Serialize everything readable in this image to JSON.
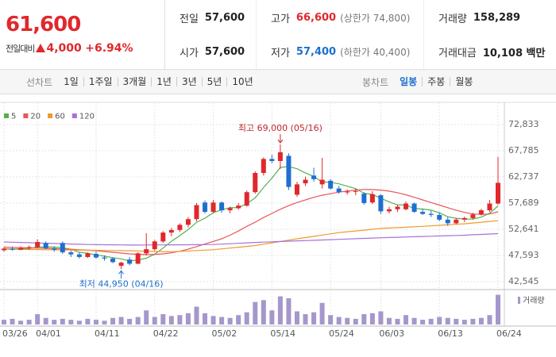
{
  "quote": {
    "price": "61,600",
    "change_caption": "전일대비",
    "change": "4,000",
    "change_pct": "+6.94%"
  },
  "stats": [
    {
      "label": "전일",
      "value": "57,600"
    },
    {
      "label": "고가",
      "value": "66,600",
      "note": "(상한가 74,800)",
      "color": "#e0282c"
    },
    {
      "label": "거래량",
      "value": "158,289"
    },
    {
      "label": "시가",
      "value": "57,600"
    },
    {
      "label": "저가",
      "value": "57,400",
      "note": "(하한가 40,400)",
      "color": "#1e6fd0"
    },
    {
      "label": "거래대금",
      "value": "10,108 백만"
    }
  ],
  "toolbar": {
    "line_caption": "선차트",
    "line_periods": [
      "1일",
      "1주일",
      "3개월",
      "1년",
      "3년",
      "5년",
      "10년"
    ],
    "candle_caption": "봉차트",
    "candle_periods": [
      "일봉",
      "주봉",
      "월봉"
    ]
  },
  "chart_data": {
    "type": "candlestick",
    "categories": [
      "03/26",
      null,
      null,
      null,
      "04/01",
      null,
      null,
      null,
      null,
      null,
      null,
      "04/11",
      null,
      null,
      null,
      null,
      null,
      null,
      "04/22",
      null,
      null,
      null,
      null,
      null,
      null,
      "05/02",
      null,
      null,
      null,
      null,
      null,
      null,
      "05/14",
      null,
      null,
      null,
      null,
      null,
      null,
      "05/24",
      null,
      null,
      null,
      null,
      null,
      "06/03",
      null,
      null,
      null,
      null,
      null,
      null,
      "06/13",
      null,
      null,
      null,
      null,
      null,
      null,
      "06/24"
    ],
    "open": [
      48600,
      48900,
      48700,
      49000,
      49200,
      50000,
      49000,
      50000,
      48200,
      47800,
      47300,
      47900,
      47200,
      47000,
      45600,
      46800,
      46000,
      48000,
      48800,
      50300,
      52000,
      52500,
      53500,
      54600,
      57800,
      56000,
      57800,
      56300,
      56700,
      57200,
      59800,
      63500,
      66200,
      65800,
      66800,
      59300,
      61500,
      63000,
      61300,
      62000,
      60500,
      59800,
      59900,
      59500,
      57800,
      59200,
      56100,
      56500,
      56500,
      57600,
      56000,
      55600,
      55400,
      54500,
      53800,
      54500,
      54800,
      55500,
      56300,
      57600
    ],
    "high": [
      49200,
      49300,
      49300,
      49500,
      50700,
      50300,
      49300,
      50300,
      48500,
      48200,
      48200,
      48300,
      47600,
      47300,
      46400,
      47300,
      48200,
      51900,
      50600,
      52300,
      52900,
      53800,
      55000,
      57700,
      58200,
      58300,
      58000,
      57000,
      57700,
      60100,
      63800,
      66500,
      67000,
      69000,
      67300,
      61800,
      62800,
      64500,
      66400,
      62300,
      61000,
      60300,
      60500,
      59800,
      60000,
      59400,
      57000,
      57400,
      58000,
      57800,
      56600,
      56200,
      55900,
      55000,
      54800,
      55100,
      55800,
      56600,
      58300,
      66600
    ],
    "low": [
      48300,
      48500,
      48600,
      48700,
      49000,
      48800,
      48300,
      47900,
      47300,
      47000,
      47100,
      47000,
      46600,
      46100,
      44950,
      45700,
      45900,
      47600,
      48500,
      50000,
      51300,
      52100,
      53000,
      54200,
      55700,
      55800,
      55800,
      55700,
      56400,
      57000,
      59500,
      63000,
      65400,
      64300,
      60200,
      58900,
      61000,
      61800,
      60500,
      60300,
      59500,
      59300,
      59200,
      57400,
      57500,
      55600,
      55700,
      56000,
      56300,
      55800,
      55400,
      55000,
      54200,
      53300,
      53600,
      54000,
      54500,
      55300,
      56000,
      57400
    ],
    "close": [
      48900,
      48700,
      49000,
      49200,
      50200,
      49000,
      48700,
      48200,
      47800,
      47300,
      48000,
      47200,
      47000,
      46300,
      46200,
      46000,
      48000,
      48800,
      50300,
      52000,
      52500,
      53500,
      54600,
      57300,
      56000,
      57800,
      56300,
      56700,
      57200,
      59800,
      63500,
      66200,
      65800,
      67500,
      60800,
      61300,
      62200,
      62300,
      62200,
      60500,
      59800,
      59900,
      60000,
      57700,
      59400,
      56100,
      56500,
      57000,
      57600,
      56000,
      55600,
      55400,
      54500,
      53800,
      54500,
      54800,
      55500,
      56300,
      57600,
      61600
    ],
    "up_color": "#e0282c",
    "down_color": "#1e6fd0",
    "ma": [
      {
        "name": "5",
        "color": "#55b04f",
        "values": [
          48900,
          48850,
          48900,
          48950,
          49200,
          49220,
          49220,
          49060,
          48780,
          48200,
          48000,
          47700,
          47460,
          47160,
          46940,
          46540,
          46700,
          47060,
          47860,
          49020,
          50320,
          51420,
          52580,
          53980,
          54780,
          55840,
          56400,
          56820,
          56800,
          57560,
          58700,
          60680,
          62500,
          64560,
          64760,
          64320,
          63520,
          62820,
          61760,
          61700,
          61400,
          60940,
          60480,
          59580,
          59360,
          58620,
          57940,
          57340,
          57320,
          56640,
          56540,
          56320,
          55820,
          55060,
          54760,
          54600,
          54620,
          54980,
          55740,
          57160
        ]
      },
      {
        "name": "20",
        "color": "#e8565a",
        "values": [
          49200,
          49150,
          49100,
          49050,
          49000,
          48950,
          48900,
          48850,
          48800,
          48700,
          48600,
          48500,
          48350,
          48200,
          48050,
          47900,
          47800,
          47750,
          47800,
          47900,
          48100,
          48400,
          48800,
          49300,
          49800,
          50300,
          50800,
          51500,
          52300,
          53200,
          54000,
          54900,
          55700,
          56500,
          57200,
          57800,
          58300,
          58800,
          59200,
          59500,
          59800,
          60000,
          60200,
          60300,
          60300,
          60200,
          60000,
          59700,
          59300,
          58800,
          58300,
          57800,
          57300,
          56800,
          56300,
          55900,
          55600,
          55500,
          55600,
          56000
        ]
      },
      {
        "name": "60",
        "color": "#f09a2a",
        "values": [
          48800,
          48780,
          48760,
          48740,
          48720,
          48700,
          48680,
          48660,
          48640,
          48620,
          48600,
          48580,
          48560,
          48540,
          48520,
          48500,
          48460,
          48420,
          48380,
          48340,
          48300,
          48380,
          48460,
          48540,
          48620,
          48700,
          48860,
          49020,
          49180,
          49340,
          49500,
          49760,
          50020,
          50280,
          50540,
          50800,
          51040,
          51280,
          51520,
          51760,
          52000,
          52160,
          52320,
          52480,
          52640,
          52800,
          52880,
          52960,
          53040,
          53120,
          53200,
          53300,
          53400,
          53500,
          53600,
          53700,
          53850,
          54000,
          54150,
          54300
        ]
      },
      {
        "name": "120",
        "color": "#a772d6",
        "values": [
          50200,
          50150,
          50100,
          50050,
          50000,
          49950,
          49900,
          49850,
          49800,
          49750,
          49700,
          49680,
          49660,
          49640,
          49620,
          49600,
          49600,
          49610,
          49620,
          49630,
          49640,
          49650,
          49660,
          49670,
          49690,
          49700,
          49780,
          49860,
          49940,
          50020,
          50100,
          50160,
          50220,
          50280,
          50340,
          50400,
          50460,
          50520,
          50580,
          50640,
          50700,
          50760,
          50820,
          50880,
          50940,
          51000,
          51050,
          51100,
          51150,
          51200,
          51250,
          51300,
          51350,
          51400,
          51450,
          51500,
          51580,
          51650,
          51720,
          51800
        ]
      }
    ],
    "volume": {
      "name": "거래량",
      "color": "#a597cc",
      "values": [
        25000,
        30000,
        20000,
        25000,
        55000,
        35000,
        25000,
        30000,
        25000,
        20000,
        30000,
        25000,
        20000,
        35000,
        40000,
        30000,
        40000,
        75000,
        40000,
        55000,
        45000,
        50000,
        60000,
        95000,
        60000,
        45000,
        40000,
        35000,
        50000,
        65000,
        120000,
        130000,
        75000,
        150000,
        140000,
        70000,
        55000,
        65000,
        115000,
        50000,
        40000,
        35000,
        30000,
        55000,
        60000,
        70000,
        35000,
        30000,
        50000,
        35000,
        25000,
        30000,
        40000,
        35000,
        30000,
        25000,
        30000,
        35000,
        50000,
        158289
      ],
      "vlim": [
        0,
        165000
      ]
    },
    "ylim": [
      42545,
      72833
    ],
    "yticks": [
      {
        "value": 42545,
        "label": "42,545"
      },
      {
        "value": 47593,
        "label": "47,593"
      },
      {
        "value": 52641,
        "label": "52,641"
      },
      {
        "value": 57689,
        "label": "57,689"
      },
      {
        "value": 62737,
        "label": "62,737"
      },
      {
        "value": 67785,
        "label": "67,785"
      },
      {
        "value": 72833,
        "label": "72,833"
      }
    ],
    "grid": true,
    "annotations": {
      "high": "최고 69,000 (05/16)",
      "low": "최저 44,950 (04/16)"
    }
  }
}
